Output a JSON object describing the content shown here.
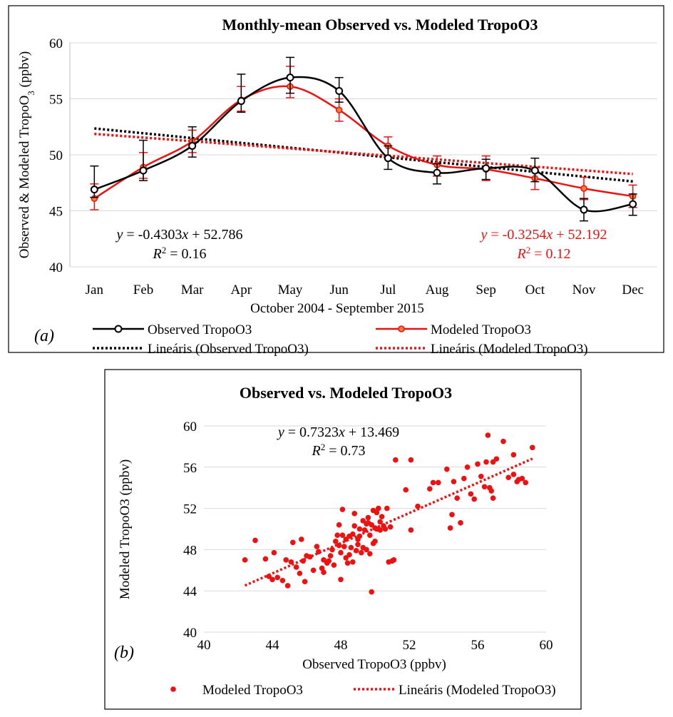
{
  "colors": {
    "observed": "#000000",
    "modeled": "#ee1111",
    "modeled_marker_fill": "#f08030",
    "gridline": "#d9d9d9"
  },
  "chart_data": [
    {
      "type": "line",
      "panel": "(a)",
      "title": "Monthly-mean Observed vs. Modeled TropoO3",
      "xlabel": "October 2004 - September 2015",
      "ylabel": "Observed & Modeled TropoO3 (ppbv)",
      "ylabel_prefix": "Observed & Modeled TropoO",
      "ylabel_sub": "3",
      "ylabel_suffix": " (ppbv)",
      "categories": [
        "Jan",
        "Feb",
        "Mar",
        "Apr",
        "May",
        "Jun",
        "Jul",
        "Aug",
        "Sep",
        "Oct",
        "Nov",
        "Dec"
      ],
      "ylim": [
        40,
        60
      ],
      "yticks": [
        40,
        45,
        50,
        55,
        60
      ],
      "grid": "horizontal",
      "legend_position": "bottom",
      "series": [
        {
          "name": "Observed TropoO3",
          "values": [
            46.9,
            48.6,
            50.8,
            54.8,
            56.9,
            55.7,
            49.7,
            48.4,
            48.8,
            48.6,
            45.1,
            45.6
          ],
          "error_upper": [
            49.0,
            51.3,
            52.5,
            57.2,
            58.7,
            56.9,
            50.8,
            49.2,
            49.6,
            49.7,
            46.1,
            46.5
          ],
          "error_lower": [
            46.2,
            47.7,
            49.8,
            53.8,
            55.5,
            54.7,
            48.7,
            47.4,
            47.8,
            47.6,
            44.1,
            44.6
          ]
        },
        {
          "name": "Modeled TropoO3",
          "values": [
            46.1,
            48.9,
            51.2,
            54.9,
            56.1,
            54.0,
            50.8,
            49.1,
            48.7,
            47.9,
            47.0,
            46.3
          ],
          "error_upper": [
            47.4,
            50.2,
            52.2,
            56.1,
            57.9,
            55.0,
            51.6,
            49.9,
            49.9,
            48.9,
            48.0,
            47.3
          ],
          "error_lower": [
            45.1,
            47.9,
            50.2,
            53.9,
            55.1,
            53.0,
            49.8,
            48.1,
            47.7,
            46.9,
            46.0,
            45.3
          ]
        }
      ],
      "trendlines": [
        {
          "name": "Lineáris (Observed TropoO3)",
          "slope": -0.4303,
          "intercept": 52.786,
          "eq_prefix": "y",
          "eq_rest": " = -0.4303",
          "eq_x": "x",
          "eq_tail": " + 52.786",
          "r2_label": "R",
          "r2_sup": "2",
          "r2_value": " = 0.16"
        },
        {
          "name": "Lineáris (Modeled TropoO3)",
          "slope": -0.3254,
          "intercept": 52.192,
          "eq_prefix": "y",
          "eq_rest": " = -0.3254",
          "eq_x": "x",
          "eq_tail": " + 52.192",
          "r2_label": "R",
          "r2_sup": "2",
          "r2_value": " = 0.12"
        }
      ]
    },
    {
      "type": "scatter",
      "panel": "(b)",
      "title": "Observed vs. Modeled TropoO3",
      "xlabel": "Observed TropoO3 (ppbv)",
      "ylabel": "Modeled TropoO3 (ppbv)",
      "xlim": [
        40,
        60
      ],
      "ylim": [
        40,
        60
      ],
      "xticks": [
        40,
        44,
        48,
        52,
        56,
        60
      ],
      "yticks": [
        40,
        44,
        48,
        52,
        56,
        60
      ],
      "grid": "horizontal",
      "legend_position": "bottom",
      "series": [
        {
          "name": "Modeled TropoO3",
          "points": [
            [
              42.4,
              47.0
            ],
            [
              43.0,
              48.9
            ],
            [
              43.6,
              47.1
            ],
            [
              43.8,
              45.4
            ],
            [
              44.0,
              45.1
            ],
            [
              44.1,
              47.7
            ],
            [
              44.3,
              45.3
            ],
            [
              44.6,
              45.0
            ],
            [
              44.8,
              47.0
            ],
            [
              44.9,
              44.5
            ],
            [
              45.1,
              46.8
            ],
            [
              45.2,
              48.7
            ],
            [
              45.4,
              46.3
            ],
            [
              45.6,
              45.7
            ],
            [
              45.7,
              49.0
            ],
            [
              45.8,
              46.9
            ],
            [
              45.9,
              44.9
            ],
            [
              46.0,
              47.4
            ],
            [
              46.2,
              47.3
            ],
            [
              46.4,
              46.0
            ],
            [
              46.6,
              48.3
            ],
            [
              46.7,
              47.8
            ],
            [
              46.9,
              46.2
            ],
            [
              47.0,
              47.0
            ],
            [
              47.0,
              45.8
            ],
            [
              47.2,
              46.7
            ],
            [
              47.3,
              46.9
            ],
            [
              47.4,
              47.4
            ],
            [
              47.5,
              48.0
            ],
            [
              47.6,
              46.5
            ],
            [
              47.7,
              48.8
            ],
            [
              47.8,
              49.4
            ],
            [
              47.9,
              48.4
            ],
            [
              47.9,
              50.4
            ],
            [
              48.0,
              47.7
            ],
            [
              48.0,
              45.1
            ],
            [
              48.1,
              51.9
            ],
            [
              48.1,
              49.4
            ],
            [
              48.2,
              48.3
            ],
            [
              48.3,
              47.2
            ],
            [
              48.3,
              49.0
            ],
            [
              48.4,
              46.7
            ],
            [
              48.5,
              47.5
            ],
            [
              48.5,
              49.3
            ],
            [
              48.6,
              48.2
            ],
            [
              48.7,
              46.8
            ],
            [
              48.7,
              49.5
            ],
            [
              48.8,
              50.3
            ],
            [
              48.8,
              51.5
            ],
            [
              48.9,
              47.9
            ],
            [
              49.0,
              49.0
            ],
            [
              49.0,
              48.5
            ],
            [
              49.1,
              49.3
            ],
            [
              49.1,
              50.0
            ],
            [
              49.2,
              47.7
            ],
            [
              49.3,
              50.8
            ],
            [
              49.3,
              48.2
            ],
            [
              49.4,
              49.9
            ],
            [
              49.5,
              50.5
            ],
            [
              49.5,
              48.0
            ],
            [
              49.6,
              51.1
            ],
            [
              49.6,
              50.6
            ],
            [
              49.7,
              49.4
            ],
            [
              49.7,
              47.6
            ],
            [
              49.8,
              43.9
            ],
            [
              49.8,
              50.4
            ],
            [
              49.9,
              48.6
            ],
            [
              49.9,
              51.8
            ],
            [
              50.0,
              50.1
            ],
            [
              50.0,
              48.8
            ],
            [
              50.1,
              51.6
            ],
            [
              50.1,
              50.0
            ],
            [
              50.2,
              52.0
            ],
            [
              50.3,
              49.9
            ],
            [
              50.3,
              50.7
            ],
            [
              50.4,
              51.2
            ],
            [
              50.5,
              50.3
            ],
            [
              50.6,
              50.0
            ],
            [
              50.7,
              52.0
            ],
            [
              50.8,
              46.8
            ],
            [
              50.9,
              50.2
            ],
            [
              51.0,
              46.9
            ],
            [
              51.1,
              47.0
            ],
            [
              51.2,
              56.7
            ],
            [
              51.8,
              53.8
            ],
            [
              52.1,
              56.7
            ],
            [
              52.1,
              49.9
            ],
            [
              52.5,
              52.2
            ],
            [
              53.2,
              53.9
            ],
            [
              53.4,
              54.5
            ],
            [
              53.7,
              54.5
            ],
            [
              54.2,
              55.8
            ],
            [
              54.4,
              50.1
            ],
            [
              54.5,
              51.4
            ],
            [
              54.6,
              54.6
            ],
            [
              54.8,
              53.0
            ],
            [
              55.0,
              50.6
            ],
            [
              55.2,
              54.9
            ],
            [
              55.4,
              56.0
            ],
            [
              55.6,
              53.4
            ],
            [
              55.8,
              52.9
            ],
            [
              56.0,
              56.3
            ],
            [
              56.2,
              55.1
            ],
            [
              56.4,
              54.1
            ],
            [
              56.5,
              56.5
            ],
            [
              56.6,
              59.1
            ],
            [
              56.7,
              54.0
            ],
            [
              56.8,
              53.7
            ],
            [
              56.9,
              56.5
            ],
            [
              57.1,
              56.8
            ],
            [
              57.5,
              58.5
            ],
            [
              57.8,
              55.0
            ],
            [
              58.1,
              55.3
            ],
            [
              58.3,
              54.6
            ],
            [
              58.4,
              54.8
            ],
            [
              58.6,
              54.9
            ],
            [
              58.8,
              54.5
            ],
            [
              59.2,
              57.9
            ],
            [
              58.1,
              57.2
            ],
            [
              56.9,
              53.0
            ]
          ]
        }
      ],
      "trendline": {
        "name": "Lineáris (Modeled TropoO3)",
        "slope": 0.7323,
        "intercept": 13.469,
        "x_range": [
          42.4,
          59.2
        ],
        "eq_prefix": "y",
        "eq_rest": " = 0.7323",
        "eq_x": "x",
        "eq_tail": " + 13.469",
        "r2_label": "R",
        "r2_sup": "2",
        "r2_value": " = 0.73"
      }
    }
  ]
}
